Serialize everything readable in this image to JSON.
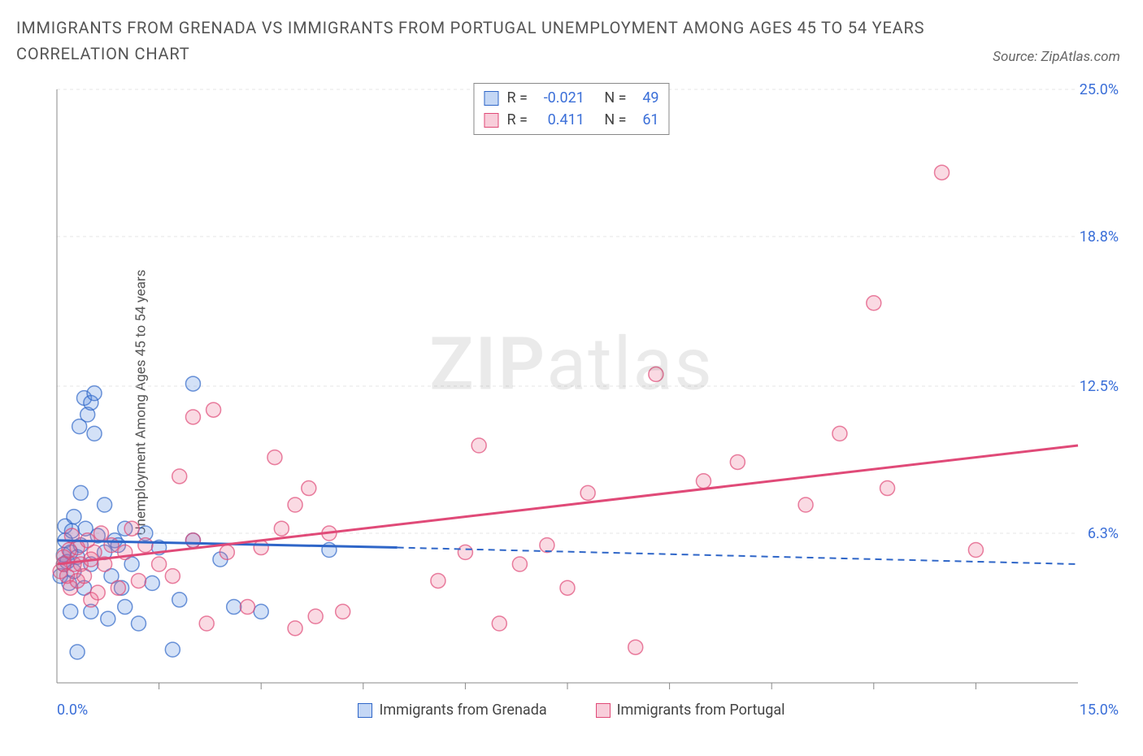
{
  "title": "IMMIGRANTS FROM GRENADA VS IMMIGRANTS FROM PORTUGAL UNEMPLOYMENT AMONG AGES 45 TO 54 YEARS CORRELATION CHART",
  "source": "Source: ZipAtlas.com",
  "watermark_a": "ZIP",
  "watermark_b": "atlas",
  "ylabel": "Unemployment Among Ages 45 to 54 years",
  "chart": {
    "type": "scatter-correlation",
    "background_color": "#ffffff",
    "grid_color": "#e6e6e6",
    "axis_line_color": "#888888",
    "tick_label_color": "#3b6fd8",
    "x_domain": [
      0,
      15
    ],
    "y_domain": [
      0,
      25
    ],
    "x_tick_labels": {
      "start": "0.0%",
      "end": "15.0%"
    },
    "x_minor_ticks": [
      1.5,
      3.0,
      4.5,
      6.0,
      7.5,
      9.0,
      10.5,
      12.0,
      13.5
    ],
    "y_ticks": [
      {
        "v": 6.3,
        "label": "6.3%"
      },
      {
        "v": 12.5,
        "label": "12.5%"
      },
      {
        "v": 18.8,
        "label": "18.8%"
      },
      {
        "v": 25.0,
        "label": "25.0%"
      }
    ],
    "marker_radius": 9,
    "marker_fill_opacity": 0.25,
    "marker_stroke_width": 1.5,
    "series": [
      {
        "name": "Immigrants from Grenada",
        "color": "#4f86e0",
        "stroke": "#2f66c8",
        "R": "-0.021",
        "N": "49",
        "trend_solid": {
          "x1": 0.0,
          "y1": 6.0,
          "x2": 5.0,
          "y2": 5.7
        },
        "trend_dash": {
          "x1": 5.0,
          "y1": 5.7,
          "x2": 15.0,
          "y2": 5.0
        },
        "points": [
          [
            0.05,
            4.5
          ],
          [
            0.1,
            5.0
          ],
          [
            0.1,
            5.4
          ],
          [
            0.12,
            6.0
          ],
          [
            0.12,
            6.6
          ],
          [
            0.15,
            5.1
          ],
          [
            0.18,
            4.2
          ],
          [
            0.2,
            3.0
          ],
          [
            0.2,
            5.5
          ],
          [
            0.22,
            6.4
          ],
          [
            0.25,
            4.7
          ],
          [
            0.25,
            7.0
          ],
          [
            0.3,
            1.3
          ],
          [
            0.3,
            5.3
          ],
          [
            0.33,
            10.8
          ],
          [
            0.35,
            5.8
          ],
          [
            0.35,
            8.0
          ],
          [
            0.4,
            4.0
          ],
          [
            0.4,
            12.0
          ],
          [
            0.42,
            6.5
          ],
          [
            0.45,
            11.3
          ],
          [
            0.5,
            3.0
          ],
          [
            0.5,
            5.0
          ],
          [
            0.5,
            11.8
          ],
          [
            0.55,
            10.5
          ],
          [
            0.55,
            12.2
          ],
          [
            0.6,
            6.2
          ],
          [
            0.7,
            5.5
          ],
          [
            0.7,
            7.5
          ],
          [
            0.75,
            2.7
          ],
          [
            0.8,
            4.5
          ],
          [
            0.85,
            6.0
          ],
          [
            0.9,
            5.8
          ],
          [
            0.95,
            4.0
          ],
          [
            1.0,
            3.2
          ],
          [
            1.0,
            6.5
          ],
          [
            1.1,
            5.0
          ],
          [
            1.2,
            2.5
          ],
          [
            1.3,
            6.3
          ],
          [
            1.4,
            4.2
          ],
          [
            1.5,
            5.7
          ],
          [
            1.7,
            1.4
          ],
          [
            1.8,
            3.5
          ],
          [
            2.0,
            6.0
          ],
          [
            2.0,
            12.6
          ],
          [
            2.4,
            5.2
          ],
          [
            2.6,
            3.2
          ],
          [
            3.0,
            3.0
          ],
          [
            4.0,
            5.6
          ]
        ]
      },
      {
        "name": "Immigrants from Portugal",
        "color": "#ea6a8f",
        "stroke": "#e04a78",
        "R": "0.411",
        "N": "61",
        "trend_solid": {
          "x1": 0.0,
          "y1": 5.0,
          "x2": 15.0,
          "y2": 10.0
        },
        "trend_dash": null,
        "points": [
          [
            0.05,
            4.7
          ],
          [
            0.1,
            5.0
          ],
          [
            0.1,
            5.3
          ],
          [
            0.15,
            4.5
          ],
          [
            0.18,
            5.6
          ],
          [
            0.2,
            4.0
          ],
          [
            0.22,
            6.2
          ],
          [
            0.25,
            5.0
          ],
          [
            0.3,
            4.3
          ],
          [
            0.3,
            5.7
          ],
          [
            0.35,
            5.0
          ],
          [
            0.4,
            4.5
          ],
          [
            0.45,
            6.0
          ],
          [
            0.5,
            3.5
          ],
          [
            0.5,
            5.2
          ],
          [
            0.55,
            5.5
          ],
          [
            0.6,
            3.8
          ],
          [
            0.65,
            6.3
          ],
          [
            0.7,
            5.0
          ],
          [
            0.8,
            5.8
          ],
          [
            0.9,
            4.0
          ],
          [
            1.0,
            5.5
          ],
          [
            1.1,
            6.5
          ],
          [
            1.2,
            4.3
          ],
          [
            1.3,
            5.8
          ],
          [
            1.5,
            5.0
          ],
          [
            1.7,
            4.5
          ],
          [
            1.8,
            8.7
          ],
          [
            2.0,
            11.2
          ],
          [
            2.0,
            6.0
          ],
          [
            2.2,
            2.5
          ],
          [
            2.3,
            11.5
          ],
          [
            2.5,
            5.5
          ],
          [
            2.8,
            3.2
          ],
          [
            3.0,
            5.7
          ],
          [
            3.2,
            9.5
          ],
          [
            3.3,
            6.5
          ],
          [
            3.5,
            2.3
          ],
          [
            3.5,
            7.5
          ],
          [
            3.7,
            8.2
          ],
          [
            3.8,
            2.8
          ],
          [
            4.0,
            6.3
          ],
          [
            4.2,
            3.0
          ],
          [
            5.6,
            4.3
          ],
          [
            6.0,
            5.5
          ],
          [
            6.2,
            10.0
          ],
          [
            6.5,
            2.5
          ],
          [
            6.8,
            5.0
          ],
          [
            7.2,
            5.8
          ],
          [
            7.5,
            4.0
          ],
          [
            7.8,
            8.0
          ],
          [
            8.5,
            1.5
          ],
          [
            8.8,
            13.0
          ],
          [
            9.5,
            8.5
          ],
          [
            10.0,
            9.3
          ],
          [
            11.0,
            7.5
          ],
          [
            11.5,
            10.5
          ],
          [
            12.0,
            16.0
          ],
          [
            12.2,
            8.2
          ],
          [
            13.0,
            21.5
          ],
          [
            13.5,
            5.6
          ]
        ]
      }
    ]
  },
  "legend_stats_header": {
    "r_label": "R =",
    "n_label": "N ="
  }
}
